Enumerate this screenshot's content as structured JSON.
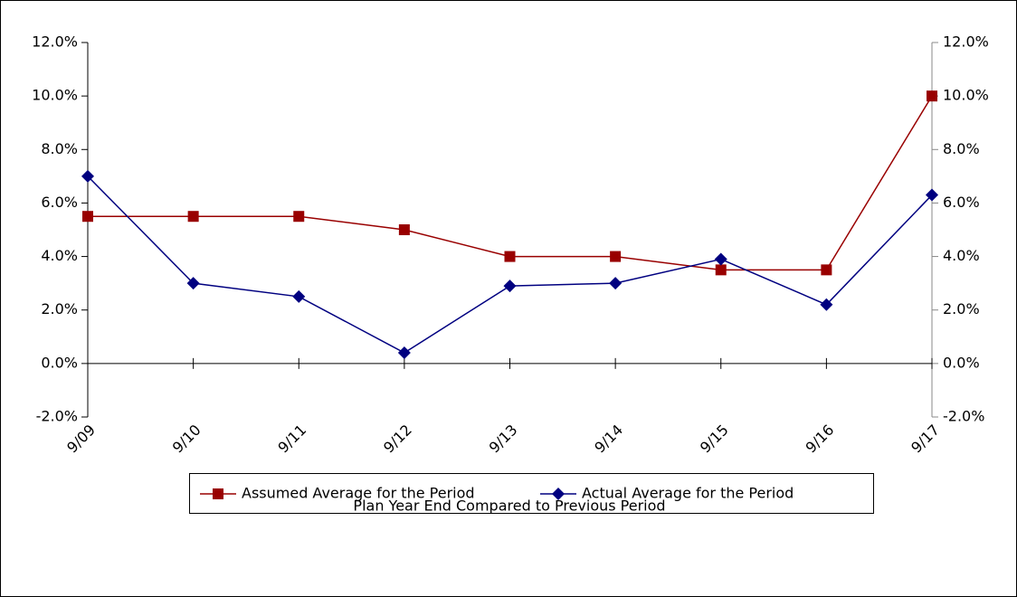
{
  "chart_data": {
    "type": "line",
    "x_label": "Plan Year  End Compared to Previous Period",
    "categories": [
      "9/09",
      "9/10",
      "9/11",
      "9/12",
      "9/13",
      "9/14",
      "9/15",
      "9/16",
      "9/17"
    ],
    "series": [
      {
        "name": "Assumed Average for the Period",
        "color": "#990000",
        "marker": "square",
        "values": [
          5.5,
          5.5,
          5.5,
          5.0,
          4.0,
          4.0,
          3.5,
          3.5,
          10.0
        ]
      },
      {
        "name": "Actual Average for the Period",
        "color": "#000080",
        "marker": "diamond",
        "values": [
          7.0,
          3.0,
          2.5,
          0.4,
          2.9,
          3.0,
          3.9,
          2.2,
          6.3
        ]
      }
    ],
    "ylim": [
      -2,
      12
    ],
    "yticks": [
      {
        "value": -2,
        "label": "-2.0%"
      },
      {
        "value": 0,
        "label": "0.0%"
      },
      {
        "value": 2,
        "label": "2.0%"
      },
      {
        "value": 4,
        "label": "4.0%"
      },
      {
        "value": 6,
        "label": "6.0%"
      },
      {
        "value": 8,
        "label": "8.0%"
      },
      {
        "value": 10,
        "label": "10.0%"
      },
      {
        "value": 12,
        "label": "12.0%"
      }
    ],
    "y2lim": [
      -2,
      12
    ],
    "y2ticks": [
      {
        "value": -2,
        "label": "-2.0%"
      },
      {
        "value": 0,
        "label": "0.0%"
      },
      {
        "value": 2,
        "label": "2.0%"
      },
      {
        "value": 4,
        "label": "4.0%"
      },
      {
        "value": 6,
        "label": "6.0%"
      },
      {
        "value": 8,
        "label": "8.0%"
      },
      {
        "value": 10,
        "label": "10.0%"
      },
      {
        "value": 12,
        "label": "12.0%"
      }
    ],
    "grid": false,
    "legend": "bottom"
  }
}
